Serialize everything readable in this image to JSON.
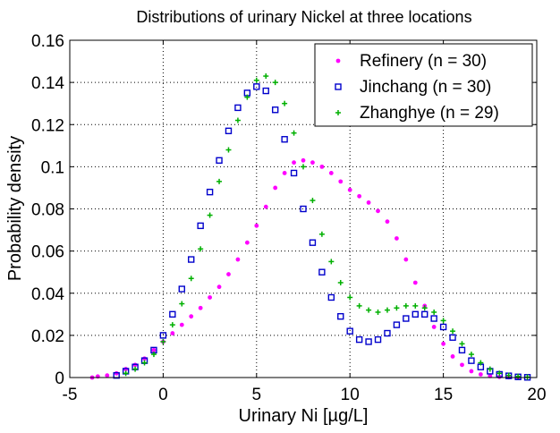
{
  "chart_data": {
    "type": "scatter",
    "title": "Distributions of urinary Nickel at three locations",
    "xlabel": "Urinary Ni [µg/L]",
    "ylabel": "Probability density",
    "xlim": [
      -5,
      20
    ],
    "ylim": [
      0,
      0.16
    ],
    "xticks": [
      -5,
      0,
      5,
      10,
      15,
      20
    ],
    "yticks": [
      0,
      0.02,
      0.04,
      0.06,
      0.08,
      0.1,
      0.12,
      0.14,
      0.16
    ],
    "grid": true,
    "legend_position": "top-right",
    "series": [
      {
        "name": "Refinery (n = 30)",
        "color": "#ff00ff",
        "marker": "dot",
        "x": [
          -3.8,
          -3.5,
          -3.0,
          -2.5,
          -2.0,
          -1.5,
          -1.0,
          -0.5,
          0.0,
          0.5,
          1.0,
          1.5,
          2.0,
          2.5,
          3.0,
          3.5,
          4.0,
          4.5,
          5.0,
          5.5,
          6.0,
          6.5,
          7.0,
          7.5,
          8.0,
          8.5,
          9.0,
          9.5,
          10.0,
          10.5,
          11.0,
          11.5,
          12.0,
          12.5,
          13.0,
          13.5,
          14.0,
          14.5,
          15.0,
          15.5,
          16.0,
          16.5,
          17.0,
          17.5,
          18.0,
          18.5,
          19.0
        ],
        "y": [
          0.0,
          0.0005,
          0.001,
          0.002,
          0.004,
          0.006,
          0.009,
          0.013,
          0.017,
          0.021,
          0.025,
          0.029,
          0.033,
          0.038,
          0.043,
          0.049,
          0.056,
          0.064,
          0.072,
          0.081,
          0.09,
          0.097,
          0.102,
          0.103,
          0.102,
          0.1,
          0.097,
          0.093,
          0.089,
          0.086,
          0.083,
          0.079,
          0.074,
          0.066,
          0.056,
          0.045,
          0.034,
          0.024,
          0.016,
          0.01,
          0.006,
          0.003,
          0.0015,
          0.0007,
          0.0003,
          0.0001,
          0.0
        ]
      },
      {
        "name": "Jinchang (n = 30)",
        "color": "#0000cc",
        "marker": "square",
        "x": [
          -2.5,
          -2.0,
          -1.5,
          -1.0,
          -0.5,
          0.0,
          0.5,
          1.0,
          1.5,
          2.0,
          2.5,
          3.0,
          3.5,
          4.0,
          4.5,
          5.0,
          5.5,
          6.0,
          6.5,
          7.0,
          7.5,
          8.0,
          8.5,
          9.0,
          9.5,
          10.0,
          10.5,
          11.0,
          11.5,
          12.0,
          12.5,
          13.0,
          13.5,
          14.0,
          14.5,
          15.0,
          15.5,
          16.0,
          16.5,
          17.0,
          17.5,
          18.0,
          18.5,
          19.0,
          19.5
        ],
        "y": [
          0.001,
          0.003,
          0.005,
          0.008,
          0.013,
          0.02,
          0.03,
          0.042,
          0.056,
          0.072,
          0.088,
          0.103,
          0.117,
          0.128,
          0.135,
          0.138,
          0.136,
          0.127,
          0.113,
          0.097,
          0.08,
          0.064,
          0.05,
          0.038,
          0.029,
          0.022,
          0.018,
          0.017,
          0.018,
          0.021,
          0.025,
          0.028,
          0.03,
          0.03,
          0.028,
          0.024,
          0.019,
          0.013,
          0.008,
          0.005,
          0.003,
          0.0015,
          0.0008,
          0.0003,
          0.0001
        ]
      },
      {
        "name": "Zhanghye (n = 29)",
        "color": "#00b000",
        "marker": "plus",
        "x": [
          -2.0,
          -1.5,
          -1.0,
          -0.5,
          0.0,
          0.5,
          1.0,
          1.5,
          2.0,
          2.5,
          3.0,
          3.5,
          4.0,
          4.5,
          5.0,
          5.5,
          6.0,
          6.5,
          7.0,
          7.5,
          8.0,
          8.5,
          9.0,
          9.5,
          10.0,
          10.5,
          11.0,
          11.5,
          12.0,
          12.5,
          13.0,
          13.5,
          14.0,
          14.5,
          15.0,
          15.5,
          16.0,
          16.5,
          17.0,
          17.5,
          18.0,
          18.5,
          19.0,
          19.5
        ],
        "y": [
          0.002,
          0.004,
          0.007,
          0.011,
          0.017,
          0.025,
          0.035,
          0.047,
          0.061,
          0.077,
          0.093,
          0.108,
          0.122,
          0.133,
          0.141,
          0.143,
          0.14,
          0.13,
          0.116,
          0.1,
          0.084,
          0.068,
          0.055,
          0.045,
          0.038,
          0.034,
          0.032,
          0.031,
          0.032,
          0.033,
          0.034,
          0.034,
          0.033,
          0.031,
          0.027,
          0.022,
          0.016,
          0.011,
          0.007,
          0.004,
          0.002,
          0.001,
          0.0005,
          0.0002
        ]
      }
    ]
  }
}
